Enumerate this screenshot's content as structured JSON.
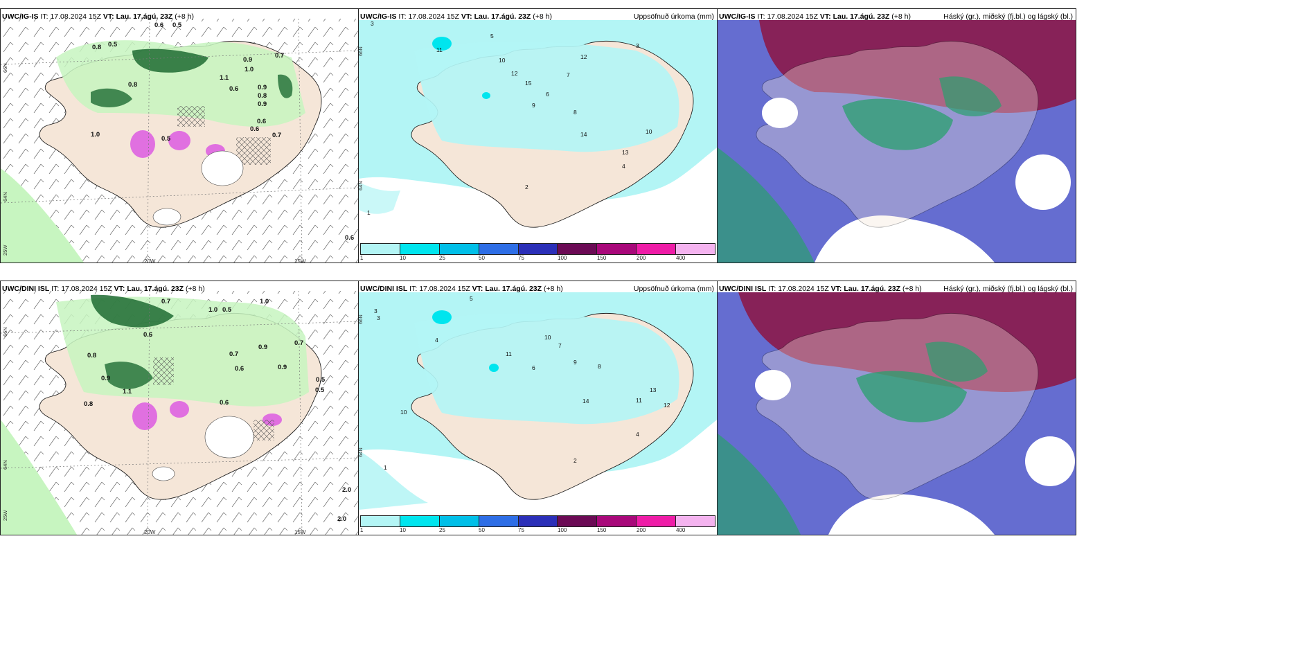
{
  "panels": [
    {
      "header": {
        "model": "UWC/IG-IS",
        "it_label": "IT:",
        "it_value": "17.08.2024 15Z",
        "vt_label": "VT:",
        "vt_value": "Lau. 17.ágú. 23Z",
        "lead": "(+8 h)"
      }
    },
    {
      "header": {
        "model": "UWC/IG-IS",
        "it_label": "IT:",
        "it_value": "17.08.2024 15Z",
        "vt_label": "VT:",
        "vt_value": "Lau. 17.ágú. 23Z",
        "lead": "(+8 h)"
      },
      "title_right": "Uppsöfnuð úrkoma (mm)"
    },
    {
      "header": {
        "model": "UWC/IG-IS",
        "it_label": "IT:",
        "it_value": "17.08.2024 15Z",
        "vt_label": "VT:",
        "vt_value": "Lau. 17.ágú. 23Z",
        "lead": "(+8 h)"
      },
      "title_right": "Háský (gr.), miðský (fj.bl.) og lágský (bl.)"
    },
    {
      "header": {
        "model": "UWC/DINI ISL",
        "it_label": "IT:",
        "it_value": "17.08.2024 15Z",
        "vt_label": "VT:",
        "vt_value": "Lau. 17.ágú. 23Z",
        "lead": "(+8 h)"
      }
    },
    {
      "header": {
        "model": "UWC/DINI ISL",
        "it_label": "IT:",
        "it_value": "17.08.2024 15Z",
        "vt_label": "VT:",
        "vt_value": "Lau. 17.ágú. 23Z",
        "lead": "(+8 h)"
      },
      "title_right": "Uppsöfnuð úrkoma (mm)"
    },
    {
      "header": {
        "model": "UWC/DINI ISL",
        "it_label": "IT:",
        "it_value": "17.08.2024 15Z",
        "vt_label": "VT:",
        "vt_value": "Lau. 17.ágú. 23Z",
        "lead": "(+8 h)"
      },
      "title_right": "Háský (gr.), miðský (fj.bl.) og lágský (bl.)"
    }
  ],
  "graticule": {
    "lat_66": "66N",
    "lat_64": "64N",
    "lat_top_mid": "66N",
    "lat_bot_mid": "64N",
    "lon_25": "25W",
    "lon_20": "20W",
    "lon_15": "15W"
  },
  "colorbar": {
    "labels": [
      "1",
      "10",
      "25",
      "50",
      "75",
      "100",
      "150",
      "200",
      "400"
    ],
    "colors": [
      "#b3f5f5",
      "#00e5ee",
      "#00bfe8",
      "#2e6ee6",
      "#2b2fb8",
      "#6b0a55",
      "#a8087a",
      "#ee1ca7",
      "#f4b3ef"
    ]
  },
  "wind_values": {
    "top": [
      "0.6",
      "0.5",
      "0.8",
      "0.5",
      "0.9",
      "1.0",
      "0.6",
      "1.1",
      "0.8",
      "0.7",
      "0.9",
      "0.5",
      "1.0",
      "0.6",
      "0.8",
      "0.9",
      "0.7",
      "0.6"
    ],
    "bottom": [
      "0.7",
      "1.0",
      "0.5",
      "0.8",
      "0.9",
      "0.6",
      "1.1",
      "0.7",
      "0.5",
      "0.8",
      "0.6",
      "0.9",
      "1.0",
      "0.7",
      "2.0",
      "0.9",
      "0.6",
      "0.5"
    ]
  },
  "precip_values": {
    "top": [
      "3",
      "5",
      "11",
      "10",
      "12",
      "15",
      "7",
      "6",
      "9",
      "8",
      "14",
      "13",
      "2",
      "4",
      "1",
      "12",
      "10",
      "3"
    ],
    "bottom": [
      "5",
      "3",
      "4",
      "11",
      "10",
      "13",
      "7",
      "9",
      "6",
      "8",
      "14",
      "12",
      "2",
      "4",
      "1",
      "10",
      "11",
      "3"
    ]
  },
  "edge_values": {
    "top_right_corner": "0.6",
    "bottom_right_corner": "2.0"
  },
  "colors": {
    "land": "#f5e6d8",
    "precip_light": "#b3f5f5",
    "green_light": "#c7f5c0",
    "green_dark": "#1e6b33",
    "pink": "#e070e0",
    "cloud_high": "#8b1a4a",
    "cloud_mid": "#4a54c8",
    "cloud_low": "#2aa06e"
  }
}
